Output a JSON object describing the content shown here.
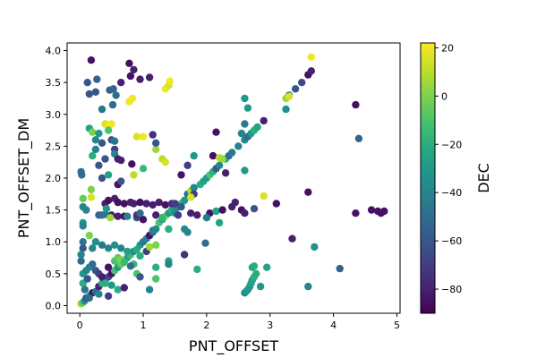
{
  "chart_data": {
    "type": "scatter",
    "title": "",
    "xlabel": "PNT_OFFSET",
    "ylabel": "PNT_OFFSET_DM",
    "xlim": [
      -0.2,
      5.05
    ],
    "ylim": [
      -0.12,
      4.12
    ],
    "xticks": [
      "0",
      "1",
      "2",
      "3",
      "4",
      "5"
    ],
    "yticks": [
      "0.0",
      "0.5",
      "1.0",
      "1.5",
      "2.0",
      "2.5",
      "3.0",
      "3.5",
      "4.0"
    ],
    "colorbar": {
      "label": "DEC",
      "min": -90,
      "max": 22,
      "ticks": [
        "20",
        "0",
        "−20",
        "−40",
        "−60",
        "−80"
      ],
      "colormap": "viridis"
    },
    "grid": false,
    "points": [
      {
        "x": 0.02,
        "y": 0.03,
        "c": 5
      },
      {
        "x": 0.05,
        "y": 0.05,
        "c": -10
      },
      {
        "x": 0.08,
        "y": 0.08,
        "c": -40
      },
      {
        "x": 0.1,
        "y": 0.12,
        "c": -60
      },
      {
        "x": 0.15,
        "y": 0.15,
        "c": -30
      },
      {
        "x": 0.2,
        "y": 0.2,
        "c": -85
      },
      {
        "x": 0.25,
        "y": 0.22,
        "c": -50
      },
      {
        "x": 0.3,
        "y": 0.3,
        "c": -80
      },
      {
        "x": 0.35,
        "y": 0.35,
        "c": -20
      },
      {
        "x": 0.4,
        "y": 0.4,
        "c": -75
      },
      {
        "x": 0.45,
        "y": 0.45,
        "c": -65
      },
      {
        "x": 0.5,
        "y": 0.5,
        "c": -85
      },
      {
        "x": 0.55,
        "y": 0.55,
        "c": -10
      },
      {
        "x": 0.6,
        "y": 0.6,
        "c": -30
      },
      {
        "x": 0.65,
        "y": 0.65,
        "c": -5
      },
      {
        "x": 0.7,
        "y": 0.7,
        "c": -20
      },
      {
        "x": 0.75,
        "y": 0.75,
        "c": -25
      },
      {
        "x": 0.8,
        "y": 0.8,
        "c": -15
      },
      {
        "x": 0.85,
        "y": 0.85,
        "c": -35
      },
      {
        "x": 0.9,
        "y": 0.88,
        "c": -20
      },
      {
        "x": 0.95,
        "y": 0.95,
        "c": -30
      },
      {
        "x": 1.0,
        "y": 1.0,
        "c": -45
      },
      {
        "x": 1.05,
        "y": 1.05,
        "c": -40
      },
      {
        "x": 1.1,
        "y": 1.1,
        "c": -85
      },
      {
        "x": 1.15,
        "y": 1.15,
        "c": -55
      },
      {
        "x": 1.2,
        "y": 1.2,
        "c": -35
      },
      {
        "x": 1.25,
        "y": 1.3,
        "c": -10
      },
      {
        "x": 1.3,
        "y": 1.35,
        "c": -25
      },
      {
        "x": 1.35,
        "y": 1.4,
        "c": 5
      },
      {
        "x": 1.4,
        "y": 1.45,
        "c": -30
      },
      {
        "x": 1.45,
        "y": 1.5,
        "c": -20
      },
      {
        "x": 1.5,
        "y": 1.5,
        "c": -35
      },
      {
        "x": 1.55,
        "y": 1.55,
        "c": -40
      },
      {
        "x": 1.6,
        "y": 1.6,
        "c": -15
      },
      {
        "x": 1.65,
        "y": 1.65,
        "c": -30
      },
      {
        "x": 1.7,
        "y": 1.75,
        "c": -50
      },
      {
        "x": 1.75,
        "y": 1.8,
        "c": 10
      },
      {
        "x": 1.8,
        "y": 1.85,
        "c": -40
      },
      {
        "x": 1.9,
        "y": 1.9,
        "c": -20
      },
      {
        "x": 1.95,
        "y": 1.95,
        "c": -25
      },
      {
        "x": 2.0,
        "y": 2.0,
        "c": -30
      },
      {
        "x": 2.05,
        "y": 2.05,
        "c": -10
      },
      {
        "x": 2.1,
        "y": 2.1,
        "c": -20
      },
      {
        "x": 2.15,
        "y": 2.15,
        "c": -60
      },
      {
        "x": 2.2,
        "y": 2.2,
        "c": -40
      },
      {
        "x": 2.3,
        "y": 2.3,
        "c": -20
      },
      {
        "x": 2.35,
        "y": 2.35,
        "c": -50
      },
      {
        "x": 2.4,
        "y": 2.4,
        "c": -45
      },
      {
        "x": 2.5,
        "y": 2.5,
        "c": -40
      },
      {
        "x": 2.6,
        "y": 2.6,
        "c": -40
      },
      {
        "x": 2.65,
        "y": 2.65,
        "c": -50
      },
      {
        "x": 2.7,
        "y": 2.7,
        "c": -30
      },
      {
        "x": 2.75,
        "y": 2.75,
        "c": -20
      },
      {
        "x": 2.8,
        "y": 2.8,
        "c": -25
      },
      {
        "x": 2.9,
        "y": 2.9,
        "c": -80
      },
      {
        "x": 3.25,
        "y": 3.25,
        "c": 5
      },
      {
        "x": 3.3,
        "y": 3.3,
        "c": -40
      },
      {
        "x": 3.4,
        "y": 3.4,
        "c": -60
      },
      {
        "x": 3.5,
        "y": 3.5,
        "c": -65
      },
      {
        "x": 3.6,
        "y": 3.62,
        "c": -85
      },
      {
        "x": 3.65,
        "y": 3.68,
        "c": -80
      },
      {
        "x": 3.65,
        "y": 3.9,
        "c": 20
      },
      {
        "x": 3.25,
        "y": 3.08,
        "c": -35
      },
      {
        "x": 3.3,
        "y": 3.28,
        "c": 15
      },
      {
        "x": 0.18,
        "y": 3.85,
        "c": -85
      },
      {
        "x": 0.12,
        "y": 3.5,
        "c": -60
      },
      {
        "x": 0.15,
        "y": 3.32,
        "c": -60
      },
      {
        "x": 0.25,
        "y": 3.35,
        "c": -60
      },
      {
        "x": 0.27,
        "y": 3.55,
        "c": -55
      },
      {
        "x": 0.47,
        "y": 3.38,
        "c": -55
      },
      {
        "x": 0.53,
        "y": 3.4,
        "c": -55
      },
      {
        "x": 0.57,
        "y": 3.3,
        "c": -50
      },
      {
        "x": 0.35,
        "y": 3.08,
        "c": -45
      },
      {
        "x": 0.52,
        "y": 3.15,
        "c": -50
      },
      {
        "x": 0.65,
        "y": 3.5,
        "c": -80
      },
      {
        "x": 0.78,
        "y": 3.8,
        "c": -85
      },
      {
        "x": 0.8,
        "y": 3.6,
        "c": -85
      },
      {
        "x": 0.85,
        "y": 3.7,
        "c": -80
      },
      {
        "x": 0.95,
        "y": 3.55,
        "c": -80
      },
      {
        "x": 1.1,
        "y": 3.58,
        "c": -80
      },
      {
        "x": 0.78,
        "y": 3.2,
        "c": 20
      },
      {
        "x": 0.83,
        "y": 3.25,
        "c": 20
      },
      {
        "x": 1.35,
        "y": 3.4,
        "c": 20
      },
      {
        "x": 1.4,
        "y": 3.45,
        "c": 15
      },
      {
        "x": 1.42,
        "y": 3.52,
        "c": 20
      },
      {
        "x": 0.4,
        "y": 2.85,
        "c": 15
      },
      {
        "x": 0.45,
        "y": 2.83,
        "c": 20
      },
      {
        "x": 0.5,
        "y": 2.85,
        "c": 20
      },
      {
        "x": 0.45,
        "y": 2.75,
        "c": -10
      },
      {
        "x": 0.15,
        "y": 2.78,
        "c": -25
      },
      {
        "x": 0.2,
        "y": 2.72,
        "c": 0
      },
      {
        "x": 0.25,
        "y": 2.6,
        "c": -40
      },
      {
        "x": 0.3,
        "y": 2.7,
        "c": -30
      },
      {
        "x": 0.35,
        "y": 2.55,
        "c": -60
      },
      {
        "x": 0.5,
        "y": 2.6,
        "c": -60
      },
      {
        "x": 0.55,
        "y": 2.58,
        "c": -45
      },
      {
        "x": 0.55,
        "y": 2.45,
        "c": -70
      },
      {
        "x": 0.9,
        "y": 2.65,
        "c": 15
      },
      {
        "x": 1.0,
        "y": 2.65,
        "c": 20
      },
      {
        "x": 1.15,
        "y": 2.68,
        "c": -75
      },
      {
        "x": 1.2,
        "y": 2.45,
        "c": 5
      },
      {
        "x": 1.3,
        "y": 2.3,
        "c": 10
      },
      {
        "x": 1.35,
        "y": 2.25,
        "c": 15
      },
      {
        "x": 1.2,
        "y": 2.55,
        "c": -60
      },
      {
        "x": 0.25,
        "y": 2.45,
        "c": -40
      },
      {
        "x": 0.2,
        "y": 2.35,
        "c": -20
      },
      {
        "x": 0.4,
        "y": 2.3,
        "c": -60
      },
      {
        "x": 0.55,
        "y": 2.38,
        "c": -40
      },
      {
        "x": 0.6,
        "y": 2.3,
        "c": -80
      },
      {
        "x": 0.65,
        "y": 2.28,
        "c": -80
      },
      {
        "x": 0.82,
        "y": 2.22,
        "c": -85
      },
      {
        "x": 0.3,
        "y": 2.2,
        "c": -60
      },
      {
        "x": 0.02,
        "y": 2.1,
        "c": -50
      },
      {
        "x": 0.03,
        "y": 2.05,
        "c": -50
      },
      {
        "x": 0.35,
        "y": 2.0,
        "c": -60
      },
      {
        "x": 0.45,
        "y": 2.05,
        "c": -25
      },
      {
        "x": 0.6,
        "y": 1.9,
        "c": -85
      },
      {
        "x": 0.65,
        "y": 1.95,
        "c": -60
      },
      {
        "x": 0.18,
        "y": 1.82,
        "c": 0
      },
      {
        "x": 0.05,
        "y": 1.68,
        "c": -5
      },
      {
        "x": 0.18,
        "y": 1.7,
        "c": 15
      },
      {
        "x": 0.05,
        "y": 1.55,
        "c": -40
      },
      {
        "x": 0.1,
        "y": 1.5,
        "c": -40
      },
      {
        "x": 0.05,
        "y": 1.3,
        "c": -30
      },
      {
        "x": 0.05,
        "y": 1.25,
        "c": -40
      },
      {
        "x": 0.15,
        "y": 1.1,
        "c": 0
      },
      {
        "x": 0.05,
        "y": 1.0,
        "c": -45
      },
      {
        "x": 0.05,
        "y": 0.9,
        "c": -60
      },
      {
        "x": 0.4,
        "y": 1.6,
        "c": -80
      },
      {
        "x": 0.45,
        "y": 1.65,
        "c": -85
      },
      {
        "x": 0.55,
        "y": 1.68,
        "c": -80
      },
      {
        "x": 0.6,
        "y": 1.62,
        "c": -85
      },
      {
        "x": 0.7,
        "y": 1.6,
        "c": -85
      },
      {
        "x": 0.8,
        "y": 1.62,
        "c": -80
      },
      {
        "x": 0.85,
        "y": 1.6,
        "c": -80
      },
      {
        "x": 0.95,
        "y": 1.62,
        "c": -85
      },
      {
        "x": 1.05,
        "y": 1.6,
        "c": -80
      },
      {
        "x": 1.15,
        "y": 1.58,
        "c": -80
      },
      {
        "x": 1.25,
        "y": 1.62,
        "c": -80
      },
      {
        "x": 1.35,
        "y": 1.58,
        "c": -85
      },
      {
        "x": 1.45,
        "y": 1.6,
        "c": -75
      },
      {
        "x": 0.3,
        "y": 1.42,
        "c": -55
      },
      {
        "x": 0.35,
        "y": 1.42,
        "c": -50
      },
      {
        "x": 0.4,
        "y": 1.43,
        "c": -45
      },
      {
        "x": 0.5,
        "y": 1.42,
        "c": -80
      },
      {
        "x": 0.6,
        "y": 1.4,
        "c": -80
      },
      {
        "x": 0.7,
        "y": 1.4,
        "c": -85
      },
      {
        "x": 0.9,
        "y": 1.38,
        "c": -60
      },
      {
        "x": 1.0,
        "y": 1.35,
        "c": -85
      },
      {
        "x": 1.2,
        "y": 1.42,
        "c": -80
      },
      {
        "x": 1.3,
        "y": 1.38,
        "c": -15
      },
      {
        "x": 1.5,
        "y": 1.45,
        "c": -35
      },
      {
        "x": 1.55,
        "y": 1.42,
        "c": -70
      },
      {
        "x": 1.75,
        "y": 1.45,
        "c": -80
      },
      {
        "x": 1.85,
        "y": 1.42,
        "c": -80
      },
      {
        "x": 2.05,
        "y": 1.45,
        "c": -85
      },
      {
        "x": 2.15,
        "y": 1.48,
        "c": -25
      },
      {
        "x": 2.25,
        "y": 1.5,
        "c": -85
      },
      {
        "x": 2.4,
        "y": 1.55,
        "c": -80
      },
      {
        "x": 2.55,
        "y": 1.5,
        "c": -85
      },
      {
        "x": 2.6,
        "y": 1.45,
        "c": -80
      },
      {
        "x": 2.75,
        "y": 1.52,
        "c": -60
      },
      {
        "x": 2.9,
        "y": 1.72,
        "c": 15
      },
      {
        "x": 3.1,
        "y": 1.6,
        "c": -85
      },
      {
        "x": 3.6,
        "y": 1.78,
        "c": -85
      },
      {
        "x": 4.35,
        "y": 1.45,
        "c": -85
      },
      {
        "x": 4.6,
        "y": 1.5,
        "c": -85
      },
      {
        "x": 4.7,
        "y": 1.48,
        "c": -85
      },
      {
        "x": 4.75,
        "y": 1.45,
        "c": -85
      },
      {
        "x": 4.8,
        "y": 1.48,
        "c": -85
      },
      {
        "x": 4.35,
        "y": 3.15,
        "c": -85
      },
      {
        "x": 4.4,
        "y": 2.62,
        "c": -55
      },
      {
        "x": 4.1,
        "y": 0.58,
        "c": -55
      },
      {
        "x": 3.7,
        "y": 0.92,
        "c": -35
      },
      {
        "x": 3.6,
        "y": 0.3,
        "c": -40
      },
      {
        "x": 3.35,
        "y": 1.05,
        "c": -80
      },
      {
        "x": 2.6,
        "y": 3.25,
        "c": -30
      },
      {
        "x": 2.65,
        "y": 3.1,
        "c": -30
      },
      {
        "x": 2.6,
        "y": 2.85,
        "c": -45
      },
      {
        "x": 2.55,
        "y": 2.7,
        "c": -40
      },
      {
        "x": 2.6,
        "y": 2.12,
        "c": -30
      },
      {
        "x": 2.15,
        "y": 2.72,
        "c": -85
      },
      {
        "x": 2.1,
        "y": 2.35,
        "c": -85
      },
      {
        "x": 2.3,
        "y": 2.08,
        "c": -80
      },
      {
        "x": 2.2,
        "y": 2.32,
        "c": 10
      },
      {
        "x": 2.25,
        "y": 2.3,
        "c": 5
      },
      {
        "x": 2.45,
        "y": 1.62,
        "c": -80
      },
      {
        "x": 2.2,
        "y": 1.3,
        "c": -25
      },
      {
        "x": 2.0,
        "y": 1.38,
        "c": -45
      },
      {
        "x": 1.8,
        "y": 2.35,
        "c": -30
      },
      {
        "x": 1.8,
        "y": 1.75,
        "c": -70
      },
      {
        "x": 1.6,
        "y": 1.55,
        "c": -60
      },
      {
        "x": 1.65,
        "y": 1.2,
        "c": -35
      },
      {
        "x": 1.7,
        "y": 1.15,
        "c": -40
      },
      {
        "x": 1.98,
        "y": 0.98,
        "c": -50
      },
      {
        "x": 1.85,
        "y": 0.57,
        "c": -20
      },
      {
        "x": 1.65,
        "y": 0.8,
        "c": -75
      },
      {
        "x": 1.4,
        "y": 0.7,
        "c": -25
      },
      {
        "x": 1.4,
        "y": 0.65,
        "c": -40
      },
      {
        "x": 1.2,
        "y": 0.6,
        "c": -20
      },
      {
        "x": 1.2,
        "y": 0.42,
        "c": -10
      },
      {
        "x": 1.1,
        "y": 0.25,
        "c": -40
      },
      {
        "x": 1.05,
        "y": 0.85,
        "c": -70
      },
      {
        "x": 1.15,
        "y": 1.18,
        "c": -40
      },
      {
        "x": 1.4,
        "y": 1.2,
        "c": -20
      },
      {
        "x": 1.5,
        "y": 1.6,
        "c": -70
      },
      {
        "x": 1.6,
        "y": 2.05,
        "c": -85
      },
      {
        "x": 1.7,
        "y": 2.2,
        "c": -70
      },
      {
        "x": 1.75,
        "y": 1.7,
        "c": 15
      },
      {
        "x": 0.05,
        "y": 0.5,
        "c": -30
      },
      {
        "x": 0.1,
        "y": 0.55,
        "c": -40
      },
      {
        "x": 0.15,
        "y": 0.6,
        "c": -40
      },
      {
        "x": 0.2,
        "y": 0.65,
        "c": -50
      },
      {
        "x": 0.25,
        "y": 0.55,
        "c": -60
      },
      {
        "x": 0.3,
        "y": 0.5,
        "c": -70
      },
      {
        "x": 0.35,
        "y": 0.45,
        "c": -80
      },
      {
        "x": 0.45,
        "y": 0.6,
        "c": -85
      },
      {
        "x": 0.2,
        "y": 0.9,
        "c": -40
      },
      {
        "x": 0.25,
        "y": 1.0,
        "c": -35
      },
      {
        "x": 0.35,
        "y": 0.95,
        "c": -45
      },
      {
        "x": 0.45,
        "y": 0.9,
        "c": -40
      },
      {
        "x": 0.55,
        "y": 0.95,
        "c": -35
      },
      {
        "x": 0.65,
        "y": 0.9,
        "c": -40
      },
      {
        "x": 0.75,
        "y": 0.85,
        "c": -25
      },
      {
        "x": 0.95,
        "y": 0.78,
        "c": -20
      },
      {
        "x": 0.85,
        "y": 0.65,
        "c": -15
      },
      {
        "x": 0.9,
        "y": 0.5,
        "c": -10
      },
      {
        "x": 0.95,
        "y": 0.45,
        "c": -60
      },
      {
        "x": 0.5,
        "y": 0.32,
        "c": -30
      },
      {
        "x": 0.6,
        "y": 0.25,
        "c": -20
      },
      {
        "x": 0.7,
        "y": 0.28,
        "c": -80
      },
      {
        "x": 0.4,
        "y": 0.35,
        "c": -20
      },
      {
        "x": 0.45,
        "y": 0.15,
        "c": -70
      },
      {
        "x": 0.15,
        "y": 0.12,
        "c": -50
      },
      {
        "x": 0.3,
        "y": 0.18,
        "c": -40
      },
      {
        "x": 0.05,
        "y": 0.35,
        "c": -20
      },
      {
        "x": 0.08,
        "y": 0.25,
        "c": -45
      },
      {
        "x": 0.12,
        "y": 0.42,
        "c": -60
      },
      {
        "x": 0.02,
        "y": 0.7,
        "c": -50
      },
      {
        "x": 0.02,
        "y": 0.8,
        "c": -40
      },
      {
        "x": 0.8,
        "y": 0.62,
        "c": -50
      },
      {
        "x": 0.75,
        "y": 1.4,
        "c": -40
      },
      {
        "x": 0.9,
        "y": 1.42,
        "c": -75
      },
      {
        "x": 0.95,
        "y": 1.45,
        "c": -50
      },
      {
        "x": 0.42,
        "y": 1.52,
        "c": -30
      },
      {
        "x": 0.48,
        "y": 1.38,
        "c": 5
      },
      {
        "x": 1.0,
        "y": 2.15,
        "c": -15
      },
      {
        "x": 0.85,
        "y": 2.05,
        "c": 10
      },
      {
        "x": 1.1,
        "y": 0.92,
        "c": 5
      },
      {
        "x": 1.2,
        "y": 0.95,
        "c": 0
      },
      {
        "x": 0.55,
        "y": 0.7,
        "c": -10
      },
      {
        "x": 0.6,
        "y": 0.75,
        "c": -5
      },
      {
        "x": 0.65,
        "y": 0.72,
        "c": 0
      },
      {
        "x": 0.7,
        "y": 0.68,
        "c": -15
      },
      {
        "x": 2.6,
        "y": 0.2,
        "c": -40
      },
      {
        "x": 2.62,
        "y": 0.22,
        "c": -35
      },
      {
        "x": 2.65,
        "y": 0.25,
        "c": -30
      },
      {
        "x": 2.68,
        "y": 0.3,
        "c": -30
      },
      {
        "x": 2.7,
        "y": 0.35,
        "c": -25
      },
      {
        "x": 2.72,
        "y": 0.4,
        "c": -25
      },
      {
        "x": 2.75,
        "y": 0.45,
        "c": -20
      },
      {
        "x": 2.78,
        "y": 0.5,
        "c": -20
      },
      {
        "x": 2.72,
        "y": 0.6,
        "c": -25
      },
      {
        "x": 2.75,
        "y": 0.62,
        "c": -20
      },
      {
        "x": 2.85,
        "y": 0.3,
        "c": -30
      },
      {
        "x": 2.95,
        "y": 0.6,
        "c": -25
      }
    ]
  }
}
